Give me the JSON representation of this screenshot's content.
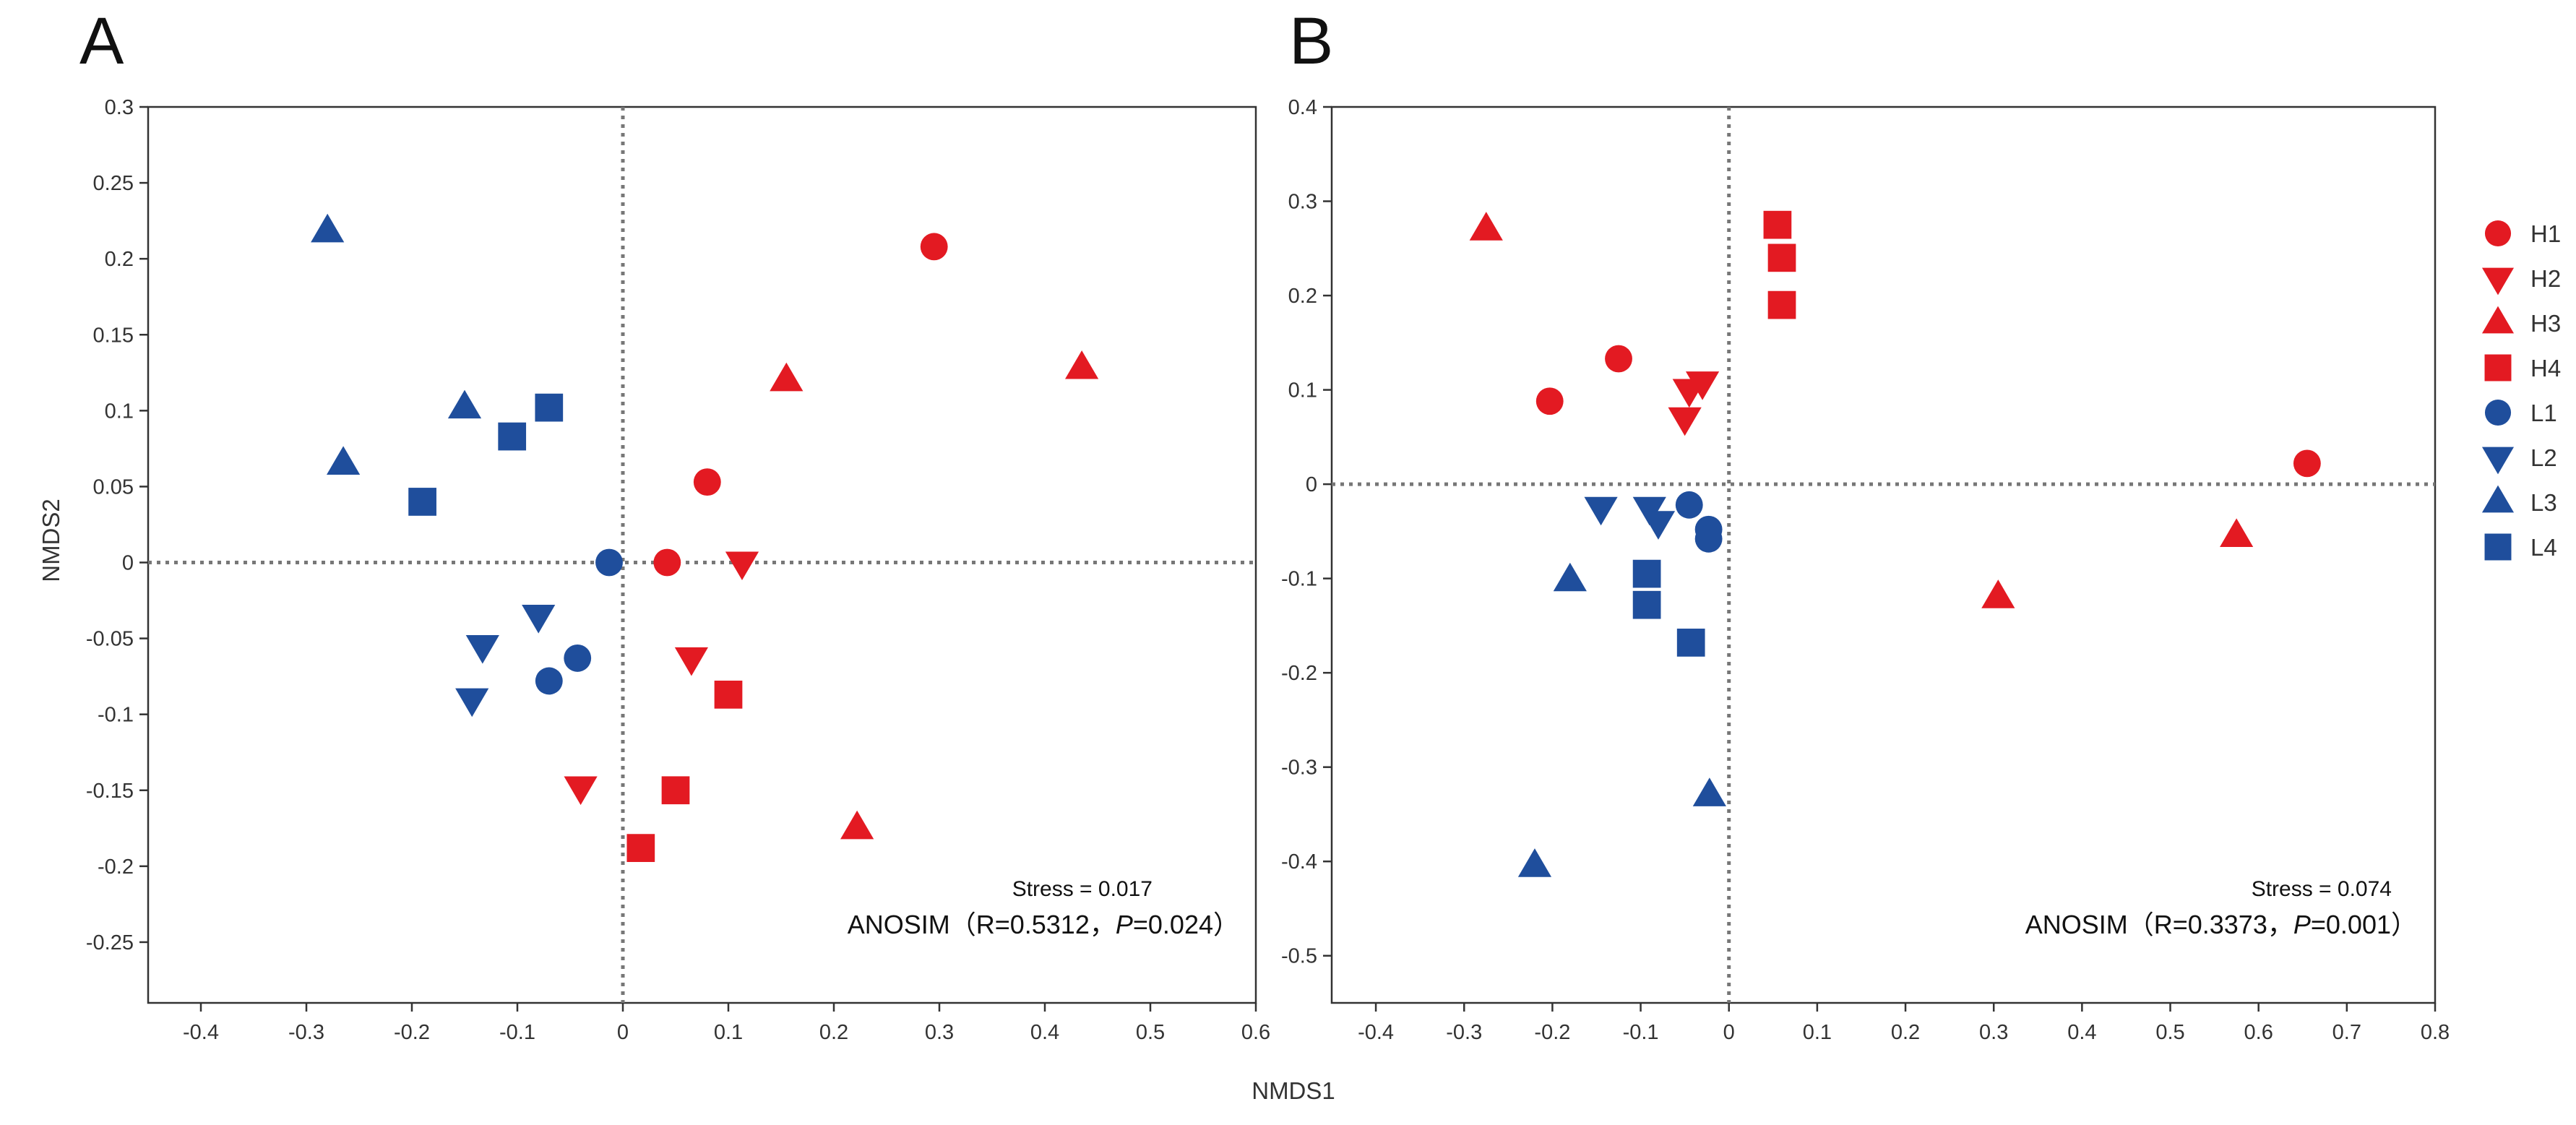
{
  "figure": {
    "xlabel": "NMDS1"
  },
  "colors": {
    "H": "#e31a22",
    "L": "#1f4e9c",
    "frame": "#333333",
    "ref_line": "#777777"
  },
  "legend": [
    {
      "label": "H1",
      "group": "H",
      "shape": "circle"
    },
    {
      "label": "H2",
      "group": "H",
      "shape": "triangle-down"
    },
    {
      "label": "H3",
      "group": "H",
      "shape": "triangle-up"
    },
    {
      "label": "H4",
      "group": "H",
      "shape": "square"
    },
    {
      "label": "L1",
      "group": "L",
      "shape": "circle"
    },
    {
      "label": "L2",
      "group": "L",
      "shape": "triangle-down"
    },
    {
      "label": "L3",
      "group": "L",
      "shape": "triangle-up"
    },
    {
      "label": "L4",
      "group": "L",
      "shape": "square"
    }
  ],
  "chart_data": [
    {
      "panel": "A",
      "type": "scatter",
      "ylabel": "NMDS2",
      "xlim": [
        -0.45,
        0.6
      ],
      "ylim": [
        -0.29,
        0.3
      ],
      "xticks": [
        {
          "v": -0.4,
          "label": "-0.4"
        },
        {
          "v": -0.3,
          "label": "-0.3"
        },
        {
          "v": -0.2,
          "label": "-0.2"
        },
        {
          "v": -0.1,
          "label": "-0.1"
        },
        {
          "v": 0,
          "label": "0"
        },
        {
          "v": 0.1,
          "label": "0.1"
        },
        {
          "v": 0.2,
          "label": "0.2"
        },
        {
          "v": 0.3,
          "label": "0.3"
        },
        {
          "v": 0.4,
          "label": "0.4"
        },
        {
          "v": 0.5,
          "label": "0.5"
        },
        {
          "v": 0.6,
          "label": "0.6"
        }
      ],
      "yticks": [
        {
          "v": 0.3,
          "label": "0.3"
        },
        {
          "v": 0.25,
          "label": "0.25"
        },
        {
          "v": 0.2,
          "label": "0.2"
        },
        {
          "v": 0.15,
          "label": "0.15"
        },
        {
          "v": 0.1,
          "label": "0.1"
        },
        {
          "v": 0.05,
          "label": "0.05"
        },
        {
          "v": 0,
          "label": "0"
        },
        {
          "v": -0.05,
          "label": "-0.05"
        },
        {
          "v": -0.1,
          "label": "-0.1"
        },
        {
          "v": -0.15,
          "label": "-0.15"
        },
        {
          "v": -0.2,
          "label": "-0.2"
        },
        {
          "v": -0.25,
          "label": "-0.25"
        }
      ],
      "stress_text": "Stress = 0.017",
      "anosim": {
        "prefix": "ANOSIM（R=0.5312，",
        "p": "P",
        "suffix": "=0.024）"
      },
      "series": [
        {
          "name": "H1",
          "points": [
            [
              0.295,
              0.208
            ],
            [
              0.08,
              0.053
            ],
            [
              0.042,
              0.0
            ]
          ]
        },
        {
          "name": "H2",
          "points": [
            [
              0.113,
              0.0
            ],
            [
              0.065,
              -0.063
            ],
            [
              -0.04,
              -0.148
            ]
          ]
        },
        {
          "name": "H3",
          "points": [
            [
              0.435,
              0.128
            ],
            [
              0.155,
              0.12
            ],
            [
              0.222,
              -0.175
            ]
          ]
        },
        {
          "name": "H4",
          "points": [
            [
              0.1,
              -0.087
            ],
            [
              0.05,
              -0.15
            ],
            [
              0.017,
              -0.188
            ]
          ]
        },
        {
          "name": "L1",
          "points": [
            [
              -0.013,
              0.0
            ],
            [
              -0.043,
              -0.063
            ],
            [
              -0.07,
              -0.078
            ]
          ]
        },
        {
          "name": "L2",
          "points": [
            [
              -0.08,
              -0.035
            ],
            [
              -0.133,
              -0.055
            ],
            [
              -0.143,
              -0.09
            ]
          ]
        },
        {
          "name": "L3",
          "points": [
            [
              -0.28,
              0.218
            ],
            [
              -0.15,
              0.102
            ],
            [
              -0.265,
              0.065
            ]
          ]
        },
        {
          "name": "L4",
          "points": [
            [
              -0.07,
              0.102
            ],
            [
              -0.105,
              0.083
            ],
            [
              -0.19,
              0.04
            ]
          ]
        }
      ]
    },
    {
      "panel": "B",
      "type": "scatter",
      "ylabel": "",
      "xlim": [
        -0.45,
        0.8
      ],
      "ylim": [
        -0.55,
        0.4
      ],
      "xticks": [
        {
          "v": -0.4,
          "label": "-0.4"
        },
        {
          "v": -0.3,
          "label": "-0.3"
        },
        {
          "v": -0.2,
          "label": "-0.2"
        },
        {
          "v": -0.1,
          "label": "-0.1"
        },
        {
          "v": 0,
          "label": "0"
        },
        {
          "v": 0.1,
          "label": "0.1"
        },
        {
          "v": 0.2,
          "label": "0.2"
        },
        {
          "v": 0.3,
          "label": "0.3"
        },
        {
          "v": 0.4,
          "label": "0.4"
        },
        {
          "v": 0.5,
          "label": "0.5"
        },
        {
          "v": 0.6,
          "label": "0.6"
        },
        {
          "v": 0.7,
          "label": "0.7"
        },
        {
          "v": 0.8,
          "label": "0.8"
        }
      ],
      "yticks": [
        {
          "v": 0.4,
          "label": "0.4"
        },
        {
          "v": 0.3,
          "label": "0.3"
        },
        {
          "v": 0.2,
          "label": "0.2"
        },
        {
          "v": 0.1,
          "label": "0.1"
        },
        {
          "v": 0,
          "label": "0"
        },
        {
          "v": -0.1,
          "label": "-0.1"
        },
        {
          "v": -0.2,
          "label": "-0.2"
        },
        {
          "v": -0.3,
          "label": "-0.3"
        },
        {
          "v": -0.4,
          "label": "-0.4"
        },
        {
          "v": -0.5,
          "label": "-0.5"
        }
      ],
      "stress_text": "Stress = 0.074",
      "anosim": {
        "prefix": "ANOSIM（R=0.3373，",
        "p": "P",
        "suffix": "=0.001）"
      },
      "series": [
        {
          "name": "H1",
          "points": [
            [
              0.655,
              0.022
            ],
            [
              -0.125,
              0.133
            ],
            [
              -0.203,
              0.088
            ]
          ]
        },
        {
          "name": "H2",
          "points": [
            [
              -0.03,
              0.108
            ],
            [
              -0.045,
              0.1
            ],
            [
              -0.05,
              0.07
            ]
          ]
        },
        {
          "name": "H3",
          "points": [
            [
              -0.275,
              0.27
            ],
            [
              0.575,
              -0.055
            ],
            [
              0.305,
              -0.12
            ]
          ]
        },
        {
          "name": "H4",
          "points": [
            [
              0.055,
              0.275
            ],
            [
              0.06,
              0.24
            ],
            [
              0.06,
              0.19
            ]
          ]
        },
        {
          "name": "L1",
          "points": [
            [
              -0.045,
              -0.022
            ],
            [
              -0.023,
              -0.048
            ],
            [
              -0.023,
              -0.058
            ]
          ]
        },
        {
          "name": "L2",
          "points": [
            [
              -0.145,
              -0.025
            ],
            [
              -0.09,
              -0.025
            ],
            [
              -0.08,
              -0.04
            ]
          ]
        },
        {
          "name": "L3",
          "points": [
            [
              -0.18,
              -0.102
            ],
            [
              -0.022,
              -0.33
            ],
            [
              -0.22,
              -0.405
            ]
          ]
        },
        {
          "name": "L4",
          "points": [
            [
              -0.093,
              -0.095
            ],
            [
              -0.093,
              -0.128
            ],
            [
              -0.043,
              -0.168
            ]
          ]
        }
      ]
    }
  ]
}
